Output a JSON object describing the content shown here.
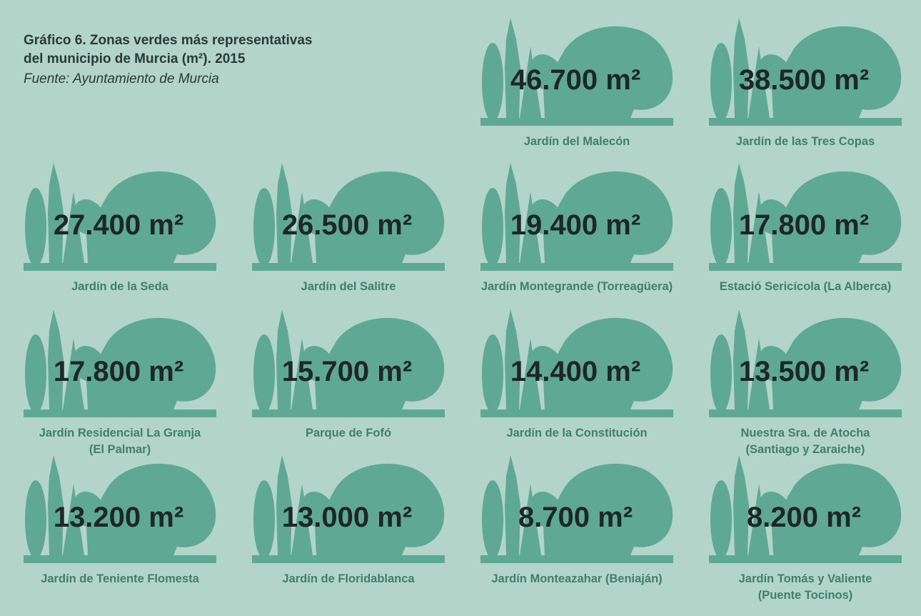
{
  "header": {
    "title": [
      "Gráfico 6.  Zonas verdes más representativas",
      "del municipio de Murcia (m²). 2015"
    ],
    "source": "Fuente: Ayuntamiento de Murcia"
  },
  "unit": "m²",
  "items": [
    {
      "value": "46.700",
      "name": [
        "Jardín del Malecón"
      ]
    },
    {
      "value": "38.500",
      "name": [
        "Jardín de las Tres Copas"
      ]
    },
    {
      "value": "27.400",
      "name": [
        "Jardín de la Seda"
      ]
    },
    {
      "value": "26.500",
      "name": [
        "Jardín del Salitre"
      ]
    },
    {
      "value": "19.400",
      "name": [
        "Jardín Montegrande (Torreagüera)"
      ]
    },
    {
      "value": "17.800",
      "name": [
        "Estació Sericícola (La Alberca)"
      ]
    },
    {
      "value": "17.800",
      "name": [
        "Jardín Residencial La Granja",
        "(El Palmar)"
      ]
    },
    {
      "value": "15.700",
      "name": [
        "Parque de Fofó"
      ]
    },
    {
      "value": "14.400",
      "name": [
        "Jardín de la Constitución"
      ]
    },
    {
      "value": "13.500",
      "name": [
        "Nuestra Sra. de Atocha",
        "(Santiago y Zaraiche)"
      ]
    },
    {
      "value": "13.200",
      "name": [
        "Jardín de Teniente Flomesta"
      ]
    },
    {
      "value": "13.000",
      "name": [
        "Jardín de Floridablanca"
      ]
    },
    {
      "value": "8.700",
      "name": [
        "Jardín Monteazahar (Beniaján)"
      ]
    },
    {
      "value": "8.200",
      "name": [
        "Jardín Tomás y Valiente",
        "(Puente Tocinos)"
      ]
    }
  ]
}
